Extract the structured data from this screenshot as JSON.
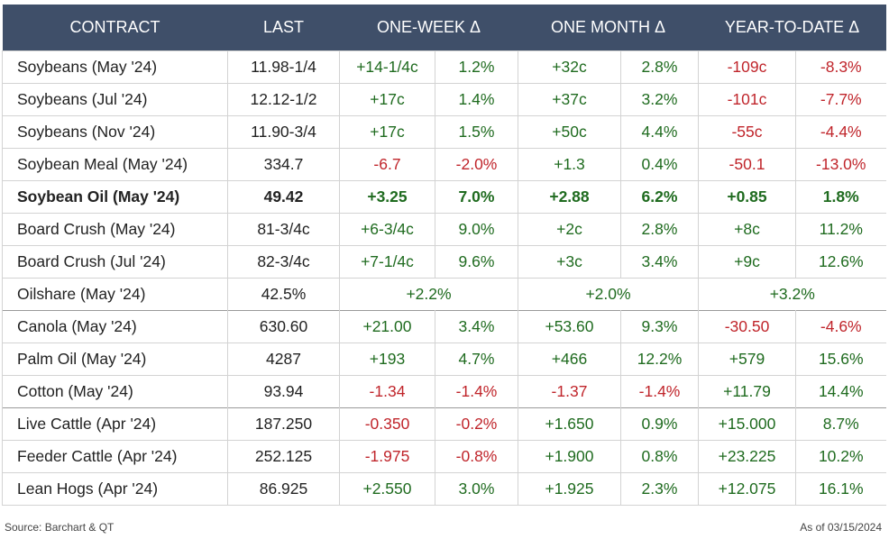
{
  "header": {
    "contract": "CONTRACT",
    "last": "LAST",
    "week": "ONE-WEEK Δ",
    "month": "ONE MONTH Δ",
    "ytd": "YEAR-TO-DATE Δ"
  },
  "rows": [
    {
      "name": "Soybeans (May '24)",
      "last": "11.98-1/4",
      "w1": "+14-1/4c",
      "w1p": "1.2%",
      "m1": "+32c",
      "m1p": "2.8%",
      "y1": "-109c",
      "y1p": "-8.3%"
    },
    {
      "name": "Soybeans (Jul '24)",
      "last": "12.12-1/2",
      "w1": "+17c",
      "w1p": "1.4%",
      "m1": "+37c",
      "m1p": "3.2%",
      "y1": "-101c",
      "y1p": "-7.7%"
    },
    {
      "name": "Soybeans (Nov '24)",
      "last": "11.90-3/4",
      "w1": "+17c",
      "w1p": "1.5%",
      "m1": "+50c",
      "m1p": "4.4%",
      "y1": "-55c",
      "y1p": "-4.4%"
    },
    {
      "name": "Soybean Meal (May '24)",
      "last": "334.7",
      "w1": "-6.7",
      "w1p": "-2.0%",
      "m1": "+1.3",
      "m1p": "0.4%",
      "y1": "-50.1",
      "y1p": "-13.0%"
    },
    {
      "name": "Soybean Oil (May '24)",
      "last": "49.42",
      "w1": "+3.25",
      "w1p": "7.0%",
      "m1": "+2.88",
      "m1p": "6.2%",
      "y1": "+0.85",
      "y1p": "1.8%"
    },
    {
      "name": "Board Crush (May '24)",
      "last": "81-3/4c",
      "w1": "+6-3/4c",
      "w1p": "9.0%",
      "m1": "+2c",
      "m1p": "2.8%",
      "y1": "+8c",
      "y1p": "11.2%"
    },
    {
      "name": "Board Crush (Jul '24)",
      "last": "82-3/4c",
      "w1": "+7-1/4c",
      "w1p": "9.6%",
      "m1": "+3c",
      "m1p": "3.4%",
      "y1": "+9c",
      "y1p": "12.6%"
    },
    {
      "name": "Oilshare (May '24)",
      "last": "42.5%",
      "w1": "+2.2%",
      "m1": "+2.0%",
      "y1": "+3.2%"
    },
    {
      "name": "Canola (May '24)",
      "last": "630.60",
      "w1": "+21.00",
      "w1p": "3.4%",
      "m1": "+53.60",
      "m1p": "9.3%",
      "y1": "-30.50",
      "y1p": "-4.6%"
    },
    {
      "name": "Palm Oil (May '24)",
      "last": "4287",
      "w1": "+193",
      "w1p": "4.7%",
      "m1": "+466",
      "m1p": "12.2%",
      "y1": "+579",
      "y1p": "15.6%"
    },
    {
      "name": "Cotton (May '24)",
      "last": "93.94",
      "w1": "-1.34",
      "w1p": "-1.4%",
      "m1": "-1.37",
      "m1p": "-1.4%",
      "y1": "+11.79",
      "y1p": "14.4%"
    },
    {
      "name": "Live Cattle (Apr '24)",
      "last": "187.250",
      "w1": "-0.350",
      "w1p": "-0.2%",
      "m1": "+1.650",
      "m1p": "0.9%",
      "y1": "+15.000",
      "y1p": "8.7%"
    },
    {
      "name": "Feeder Cattle (Apr '24)",
      "last": "252.125",
      "w1": "-1.975",
      "w1p": "-0.8%",
      "m1": "+1.900",
      "m1p": "0.8%",
      "y1": "+23.225",
      "y1p": "10.2%"
    },
    {
      "name": "Lean Hogs (Apr '24)",
      "last": "86.925",
      "w1": "+2.550",
      "w1p": "3.0%",
      "m1": "+1.925",
      "m1p": "2.3%",
      "y1": "+12.075",
      "y1p": "16.1%"
    }
  ],
  "footer": {
    "source": "Source: Barchart & QT",
    "asof": "As of 03/15/2024"
  },
  "colors": {
    "header_bg": "#3f4f69",
    "positive": "#1f6b1f",
    "negative": "#c0252b"
  }
}
